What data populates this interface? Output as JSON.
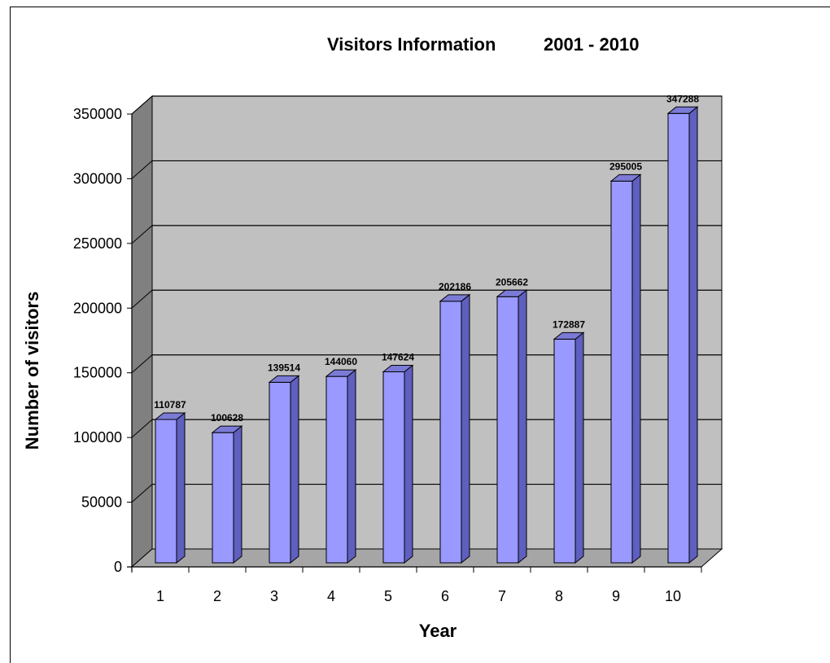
{
  "chart_data": {
    "type": "bar",
    "title": "Visitors Information",
    "subtitle": "2001 - 2010",
    "xlabel": "Year",
    "ylabel": "Number of visitors",
    "categories": [
      "1",
      "2",
      "3",
      "4",
      "5",
      "6",
      "7",
      "8",
      "9",
      "10"
    ],
    "values": [
      110787,
      100628,
      139514,
      144060,
      147624,
      202186,
      205662,
      172887,
      295005,
      347288
    ],
    "data_labels": [
      "110787",
      "100628",
      "139514",
      "144060",
      "147624",
      "202186",
      "205662",
      "172887",
      "295005",
      "347288"
    ],
    "ylim": [
      0,
      350000
    ],
    "yticks": [
      0,
      50000,
      100000,
      150000,
      200000,
      250000,
      300000,
      350000
    ],
    "ytick_labels": [
      "0",
      "50000",
      "100000",
      "150000",
      "200000",
      "250000",
      "300000",
      "350000"
    ],
    "grid": true,
    "style": "3d",
    "colors": {
      "bar_front": "#9999ff",
      "bar_top": "#7b7bd6",
      "bar_side": "#5f5fbf",
      "back_wall": "#c0c0c0",
      "side_wall": "#808080",
      "floor": "#a6a6a6"
    }
  }
}
